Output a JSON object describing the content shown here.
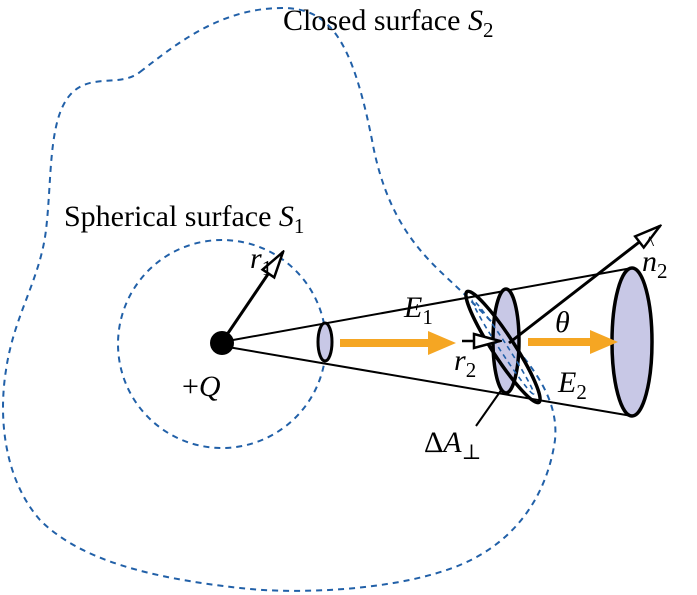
{
  "colors": {
    "surface_line": "#2160a8",
    "field_arrow": "#f5a623",
    "area_fill": "#c8c8e6",
    "ink": "#000000"
  },
  "labels": {
    "closed_surface_text": "Closed surface ",
    "closed_surface_var": "S",
    "closed_surface_sub": "2",
    "spherical_surface_text": "Spherical surface ",
    "spherical_surface_var": "S",
    "spherical_surface_sub": "1",
    "r1_var": "r",
    "r1_sub": "1",
    "charge_sign": "+",
    "charge_var": "Q",
    "e1_var": "E",
    "e1_sub": "1",
    "r2_var": "r",
    "r2_sub": "2",
    "theta": "θ",
    "e2_var": "E",
    "e2_sub": "2",
    "n2_var": "n",
    "n2_sub": "2",
    "delta_a_delta": "Δ",
    "delta_a_var": "A",
    "delta_a_sub": "⊥"
  }
}
